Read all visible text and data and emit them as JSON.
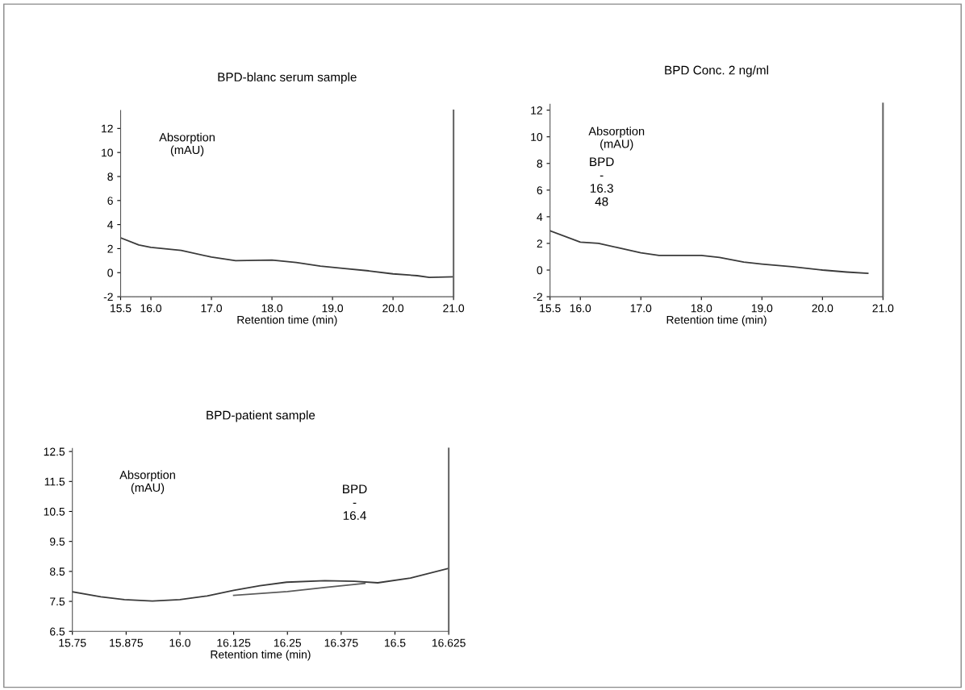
{
  "chart_data": [
    {
      "type": "line",
      "title": "BPD-blanc serum sample",
      "xlabel": "Retention time (min)",
      "ylabel": "Absorption\n(mAU)",
      "xlim": [
        15.5,
        21.0
      ],
      "ylim": [
        -2,
        13.5
      ],
      "xticks": [
        15.5,
        {
          "value": 16,
          "label": "16.0"
        },
        {
          "value": 17,
          "label": "17.0"
        },
        {
          "value": 18,
          "label": "18.0"
        },
        {
          "value": 19,
          "label": "19.0"
        },
        {
          "value": 20,
          "label": "20.0"
        },
        {
          "value": 21,
          "label": "21.0"
        }
      ],
      "yticks": [
        -2,
        0,
        2,
        4,
        6,
        8,
        10,
        12
      ],
      "grid": false,
      "legend": false,
      "series": [
        {
          "color": "#3a3a3a",
          "x": [
            15.5,
            15.8,
            16.0,
            16.5,
            17.0,
            17.4,
            18.0,
            18.4,
            18.8,
            19.2,
            19.6,
            20.0,
            20.4,
            20.6,
            21.0
          ],
          "values": [
            2.9,
            2.3,
            2.1,
            1.85,
            1.3,
            1.0,
            1.05,
            0.85,
            0.55,
            0.35,
            0.15,
            -0.1,
            -0.25,
            -0.4,
            -0.35
          ]
        }
      ]
    },
    {
      "type": "line",
      "title": "BPD Conc. 2 ng/ml",
      "xlabel": "Retention time (min)",
      "ylabel": "Absorption\n(mAU)",
      "xlim": [
        15.5,
        21.0
      ],
      "ylim": [
        -2,
        12.5
      ],
      "xticks": [
        15.5,
        {
          "value": 16,
          "label": "16.0"
        },
        {
          "value": 17,
          "label": "17.0"
        },
        {
          "value": 18,
          "label": "18.0"
        },
        {
          "value": 19,
          "label": "19.0"
        },
        {
          "value": 20,
          "label": "20.0"
        },
        {
          "value": 21,
          "label": "21.0"
        }
      ],
      "yticks": [
        -2,
        0,
        2,
        4,
        6,
        8,
        10,
        12
      ],
      "grid": false,
      "legend": false,
      "annotations": [
        "BPD\n-\n16.3\n48"
      ],
      "series": [
        {
          "color": "#3a3a3a",
          "x": [
            15.5,
            16.0,
            16.3,
            16.6,
            17.0,
            17.3,
            18.0,
            18.3,
            18.7,
            19.0,
            19.5,
            20.0,
            20.4,
            20.75
          ],
          "values": [
            2.95,
            2.1,
            2.0,
            1.7,
            1.3,
            1.1,
            1.1,
            0.95,
            0.6,
            0.45,
            0.25,
            0.0,
            -0.15,
            -0.25
          ]
        }
      ]
    },
    {
      "type": "line",
      "title": "BPD-patient sample",
      "xlabel": "Retention time (min)",
      "ylabel": "Absorption\n(mAU)",
      "xlim": [
        15.75,
        16.625
      ],
      "ylim": [
        6.5,
        12.6
      ],
      "xticks": [
        15.75,
        15.875,
        {
          "value": 16,
          "label": "16.0"
        },
        16.125,
        16.25,
        16.375,
        16.5,
        16.625
      ],
      "yticks": [
        6.5,
        7.5,
        8.5,
        9.5,
        10.5,
        11.5,
        12.5
      ],
      "grid": false,
      "legend": false,
      "annotations": [
        "BPD\n-\n16.4"
      ],
      "series": [
        {
          "color": "#3a3a3a",
          "x": [
            15.75,
            15.816,
            15.871,
            15.936,
            16.0,
            16.063,
            16.125,
            16.186,
            16.248,
            16.337,
            16.406,
            16.46,
            16.536,
            16.625
          ],
          "values": [
            7.82,
            7.65,
            7.56,
            7.51,
            7.56,
            7.68,
            7.87,
            8.02,
            8.14,
            8.19,
            8.17,
            8.12,
            8.28,
            8.6
          ]
        },
        {
          "color": "#5a5a5a",
          "x": [
            16.125,
            16.25,
            16.34,
            16.43
          ],
          "values": [
            7.7,
            7.83,
            7.97,
            8.1
          ]
        }
      ]
    }
  ]
}
